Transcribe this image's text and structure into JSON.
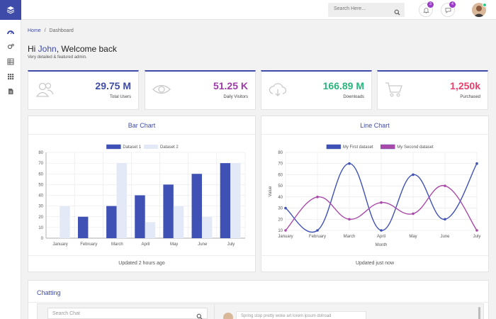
{
  "search": {
    "placeholder": "Search Here..."
  },
  "notifications": {
    "bell_count": "3",
    "chat_count": "4"
  },
  "breadcrumb": {
    "home": "Home",
    "separator": "/",
    "current": "Dashboard"
  },
  "welcome": {
    "prefix": "Hi ",
    "name": "John",
    "suffix": ", Welcome back",
    "subtitle": "Very detailed & featured admin."
  },
  "stats": [
    {
      "value": "29.75 M",
      "label": "Total Users",
      "color": "#3f4ba8",
      "icon": "users-icon"
    },
    {
      "value": "51.25 K",
      "label": "Daily Visitors",
      "color": "#9c3ca8",
      "icon": "eye-icon"
    },
    {
      "value": "166.89 M",
      "label": "Downloads",
      "color": "#2ab57d",
      "icon": "cloud-download-icon"
    },
    {
      "value": "1,250k",
      "label": "Purchased",
      "color": "#e83e6c",
      "icon": "cart-icon"
    }
  ],
  "bar_card": {
    "title": "Bar Chart",
    "footer": "Updated 2 hours ago"
  },
  "line_card": {
    "title": "Line Chart",
    "footer": "Updated just now"
  },
  "chat": {
    "title": "Chatting",
    "search_placeholder": "Search Chat",
    "message_preview": "Spring stop pretty woke art lorem ipsum dolroad"
  },
  "chart_data": [
    {
      "type": "bar",
      "title": "Bar Chart",
      "categories": [
        "January",
        "February",
        "March",
        "April",
        "May",
        "June",
        "July"
      ],
      "series": [
        {
          "name": "Dataset 1",
          "values": [
            0,
            20,
            30,
            40,
            50,
            60,
            70
          ],
          "color": "#3f51b5"
        },
        {
          "name": "Dataset 2",
          "values": [
            30,
            0,
            70,
            15,
            30,
            20,
            70
          ],
          "color": "#e3e9f6"
        }
      ],
      "xlabel": "",
      "ylabel": "",
      "ylim": [
        0,
        80
      ],
      "yticks": [
        0,
        10,
        20,
        30,
        40,
        50,
        60,
        70,
        80
      ],
      "legend": "top"
    },
    {
      "type": "line",
      "title": "Line Chart",
      "categories": [
        "January",
        "February",
        "March",
        "April",
        "May",
        "June",
        "July"
      ],
      "series": [
        {
          "name": "My First dataset",
          "values": [
            30,
            10,
            70,
            10,
            60,
            20,
            70
          ],
          "color": "#3f51b5"
        },
        {
          "name": "My Second dataset",
          "values": [
            10,
            40,
            20,
            35,
            25,
            50,
            10
          ],
          "color": "#a94aa9"
        }
      ],
      "xlabel": "Month",
      "ylabel": "Value",
      "ylim": [
        10,
        80
      ],
      "yticks": [
        10,
        20,
        30,
        40,
        50,
        60,
        70,
        80
      ],
      "legend": "top"
    }
  ]
}
